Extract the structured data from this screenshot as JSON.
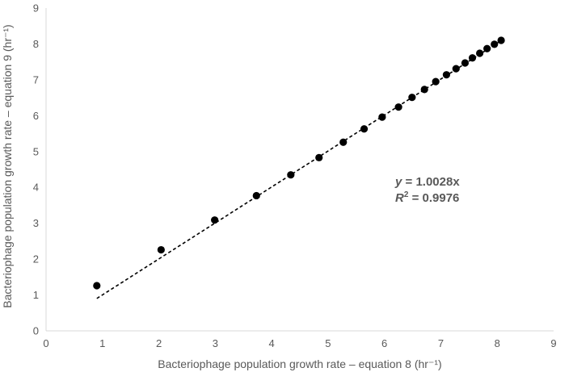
{
  "chart_data": {
    "type": "scatter",
    "title": "",
    "xlabel": "Bacteriophage population growth rate – equation 8 (hr⁻¹)",
    "ylabel": "Bacteriophage population growth rate – equation 9 (hr⁻¹)",
    "xlim": [
      0,
      9
    ],
    "ylim": [
      0,
      9
    ],
    "x_ticks": [
      "0",
      "1",
      "2",
      "3",
      "4",
      "5",
      "6",
      "7",
      "8",
      "9"
    ],
    "y_ticks": [
      "0",
      "1",
      "2",
      "3",
      "4",
      "5",
      "6",
      "7",
      "8",
      "9"
    ],
    "grid": false,
    "legend": "none",
    "marker_color": "#000000",
    "trendline": {
      "type": "linear",
      "slope": 1.0028,
      "intercept": 0,
      "x_range": [
        0.9,
        8.08
      ],
      "style": "dashed"
    },
    "annotation": {
      "equation_var": "y",
      "equation_rest": " = 1.0028x",
      "r2_var": "R",
      "r2_sup": "2",
      "r2_rest": " = 0.9976"
    },
    "points": [
      {
        "x": 0.9,
        "y": 1.26
      },
      {
        "x": 2.04,
        "y": 2.26
      },
      {
        "x": 2.99,
        "y": 3.09
      },
      {
        "x": 3.73,
        "y": 3.77
      },
      {
        "x": 4.34,
        "y": 4.35
      },
      {
        "x": 4.84,
        "y": 4.83
      },
      {
        "x": 5.27,
        "y": 5.26
      },
      {
        "x": 5.64,
        "y": 5.63
      },
      {
        "x": 5.96,
        "y": 5.96
      },
      {
        "x": 6.25,
        "y": 6.24
      },
      {
        "x": 6.49,
        "y": 6.51
      },
      {
        "x": 6.71,
        "y": 6.73
      },
      {
        "x": 6.91,
        "y": 6.95
      },
      {
        "x": 7.1,
        "y": 7.14
      },
      {
        "x": 7.27,
        "y": 7.31
      },
      {
        "x": 7.43,
        "y": 7.47
      },
      {
        "x": 7.56,
        "y": 7.61
      },
      {
        "x": 7.69,
        "y": 7.74
      },
      {
        "x": 7.82,
        "y": 7.87
      },
      {
        "x": 7.95,
        "y": 7.99
      },
      {
        "x": 8.07,
        "y": 8.1
      }
    ]
  }
}
